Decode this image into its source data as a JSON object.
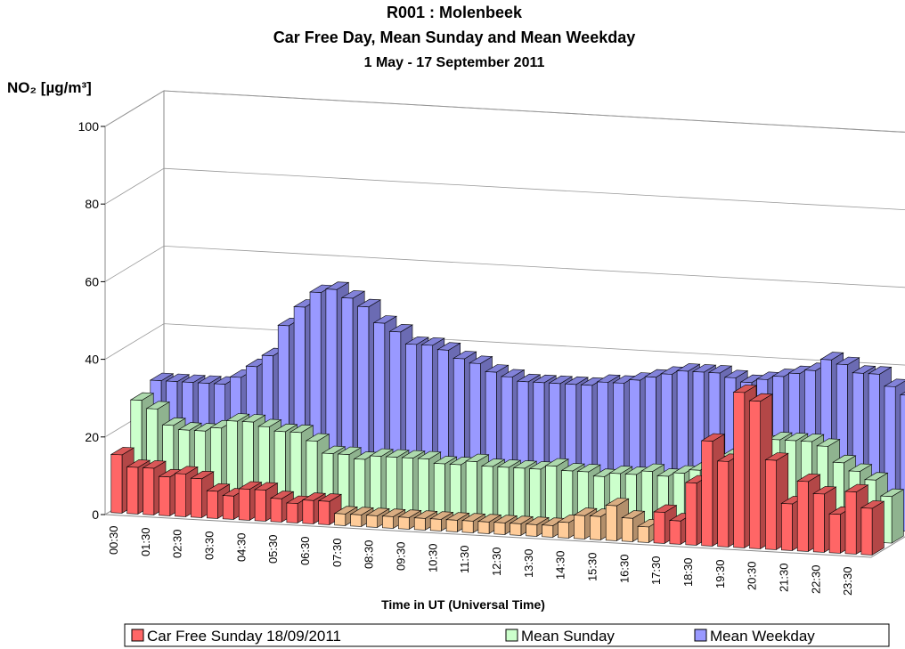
{
  "chart_data": {
    "type": "bar3d",
    "title": "R001 : Molenbeek",
    "subtitle": "Car Free Day, Mean Sunday and Mean Weekday",
    "period": "1 May - 17 September 2011",
    "ylabel": "NO₂  [µg/m³]",
    "xlabel": "Time in UT (Universal Time)",
    "categories": [
      "00:30",
      null,
      "01:30",
      null,
      "02:30",
      null,
      "03:30",
      null,
      "04:30",
      null,
      "05:30",
      null,
      "06:30",
      null,
      "07:30",
      null,
      "08:30",
      null,
      "09:30",
      null,
      "10:30",
      null,
      "11:30",
      null,
      "12:30",
      null,
      "13:30",
      null,
      "14:30",
      null,
      "15:30",
      null,
      "16:30",
      null,
      "17:30",
      null,
      "18:30",
      null,
      "19:30",
      null,
      "20:30",
      null,
      "21:30",
      null,
      "22:30",
      null,
      "23:30",
      null
    ],
    "ylim": [
      0,
      100
    ],
    "yticks": [
      0,
      20,
      40,
      60,
      80,
      100
    ],
    "grid": true,
    "series": [
      {
        "name": "Car Free Sunday 18/09/2011",
        "color": "#ff6666",
        "colors": [
          "#ff6666",
          "#ff6666",
          "#ff6666",
          "#ff6666",
          "#ff6666",
          "#ff6666",
          "#ff6666",
          "#ff6666",
          "#ff6666",
          "#ff6666",
          "#ff6666",
          "#ff6666",
          "#ff6666",
          "#ff6666",
          "#ffcc99",
          "#ffcc99",
          "#ffcc99",
          "#ffcc99",
          "#ffcc99",
          "#ffcc99",
          "#ffcc99",
          "#ffcc99",
          "#ffcc99",
          "#ffcc99",
          "#ffcc99",
          "#ffcc99",
          "#ffcc99",
          "#ffcc99",
          "#ffcc99",
          "#ffcc99",
          "#ffcc99",
          "#ffcc99",
          "#ffcc99",
          "#ffcc99",
          "#ff6666",
          "#ff6666",
          "#ff6666",
          "#ff6666",
          "#ff6666",
          "#ff6666",
          "#ff6666",
          "#ff6666",
          "#ff6666",
          "#ff6666",
          "#ff6666",
          "#ff6666",
          "#ff6666",
          "#ff6666"
        ],
        "values": [
          15,
          12,
          12,
          10,
          11,
          10,
          7,
          6,
          8,
          8,
          6,
          5,
          6,
          6,
          3,
          3,
          3,
          3,
          3,
          3,
          3,
          3,
          3,
          3,
          3,
          3,
          3,
          3,
          4,
          6,
          6,
          9,
          6,
          4,
          8,
          6,
          16,
          27,
          22,
          40,
          38,
          23,
          12,
          18,
          15,
          10,
          16,
          12
        ]
      },
      {
        "name": "Mean Sunday",
        "color": "#ccffcc",
        "values": [
          26,
          24,
          20,
          19,
          19,
          20,
          22,
          22,
          21,
          20,
          20,
          18,
          15,
          15,
          14,
          15,
          15,
          15,
          15,
          14,
          14,
          15,
          14,
          14,
          14,
          14,
          15,
          14,
          14,
          13,
          14,
          14,
          15,
          14,
          15,
          16,
          17,
          20,
          22,
          24,
          25,
          25,
          25,
          24,
          20,
          18,
          16,
          12
        ]
      },
      {
        "name": "Mean Weekday",
        "color": "#9999ff",
        "values": [
          28,
          28,
          28,
          28,
          28,
          30,
          33,
          36,
          44,
          49,
          53,
          54,
          52,
          50,
          46,
          44,
          41,
          41,
          40,
          38,
          37,
          35,
          34,
          33,
          33,
          33,
          33,
          33,
          34,
          34,
          35,
          36,
          37,
          38,
          38,
          38,
          37,
          36,
          37,
          38,
          39,
          40,
          43,
          42,
          40,
          40,
          37,
          35
        ]
      }
    ]
  }
}
